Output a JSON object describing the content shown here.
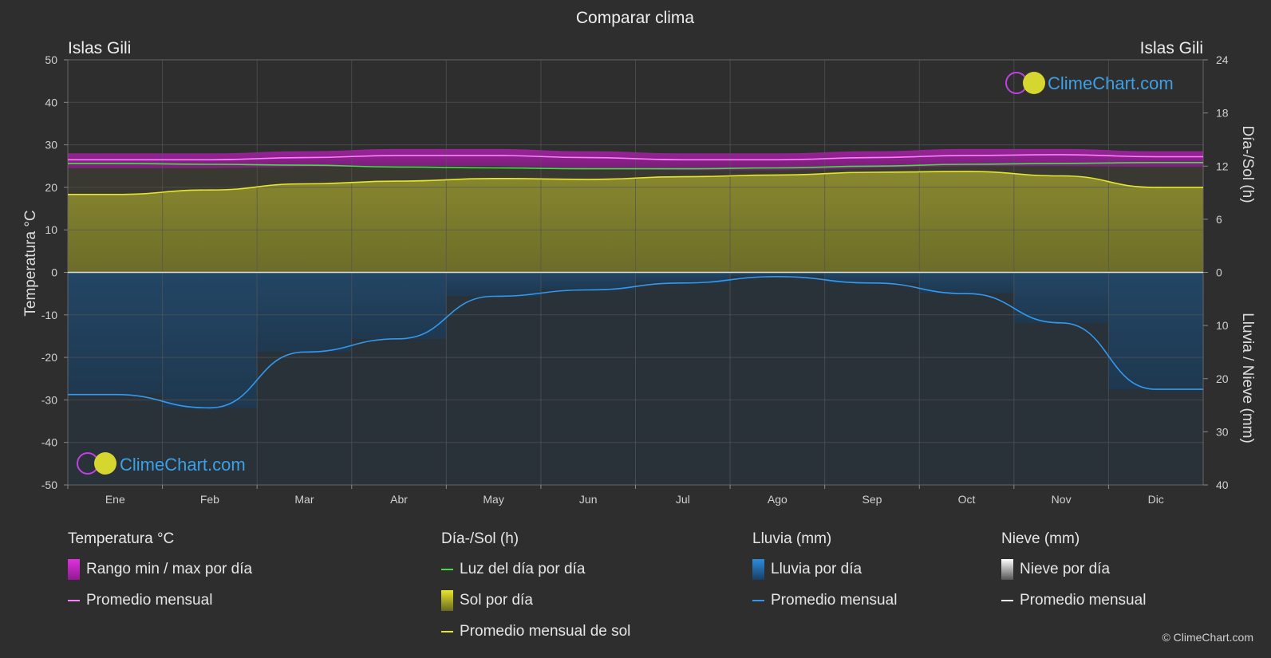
{
  "title": "Comparar clima",
  "location_left": "Islas Gili",
  "location_right": "Islas Gili",
  "watermark": "ClimeChart.com",
  "copyright": "© ClimeChart.com",
  "colors": {
    "background": "#2e2e2e",
    "grid": "#555555",
    "temp_range": "#d020d0",
    "temp_avg": "#ff80ff",
    "daylight": "#44dd44",
    "sun_fill": "#9a9a2a",
    "sun_avg": "#e6e62e",
    "rain_fill": "#1e5a8c",
    "rain_avg": "#3399ee",
    "snow_avg": "#ffffff",
    "watermark_text": "#3ca0e6"
  },
  "chart_data": {
    "type": "area",
    "categories": [
      "Ene",
      "Feb",
      "Mar",
      "Abr",
      "May",
      "Jun",
      "Jul",
      "Ago",
      "Sep",
      "Oct",
      "Nov",
      "Dic"
    ],
    "axes": {
      "left": {
        "label": "Temperatura °C",
        "range": [
          -50,
          50
        ],
        "ticks": [
          50,
          40,
          30,
          20,
          10,
          0,
          -10,
          -20,
          -30,
          -40,
          -50
        ]
      },
      "right_top": {
        "label": "Día-/Sol (h)",
        "range": [
          0,
          24
        ],
        "ticks": [
          24,
          18,
          12,
          6,
          0
        ]
      },
      "right_bottom": {
        "label": "Lluvia / Nieve (mm)",
        "range": [
          0,
          40
        ],
        "ticks": [
          10,
          20,
          30,
          40
        ]
      }
    },
    "grid": true,
    "series": [
      {
        "name": "Rango min / max por día",
        "kind": "band",
        "axis": "left",
        "low": [
          24.5,
          24.5,
          24.8,
          25.0,
          25.0,
          24.5,
          24.0,
          24.0,
          24.5,
          25.0,
          25.0,
          24.8
        ],
        "high": [
          28.0,
          28.0,
          28.5,
          29.0,
          29.0,
          28.5,
          28.0,
          28.0,
          28.5,
          29.0,
          29.0,
          28.5
        ]
      },
      {
        "name": "Promedio mensual",
        "kind": "line",
        "axis": "left",
        "values": [
          26.5,
          26.5,
          27.0,
          27.5,
          27.5,
          27.0,
          26.5,
          26.5,
          27.0,
          27.5,
          27.7,
          27.2
        ]
      },
      {
        "name": "Luz del día por día",
        "kind": "line",
        "axis": "right_top",
        "values": [
          12.3,
          12.2,
          12.1,
          11.9,
          11.8,
          11.7,
          11.7,
          11.8,
          12.0,
          12.2,
          12.3,
          12.4
        ]
      },
      {
        "name": "Sol por día",
        "kind": "area",
        "axis": "right_top",
        "values": [
          8.8,
          9.3,
          10.0,
          10.3,
          10.6,
          10.5,
          10.8,
          11.0,
          11.3,
          11.4,
          10.9,
          9.6
        ]
      },
      {
        "name": "Promedio mensual de sol",
        "kind": "line",
        "axis": "right_top",
        "values": [
          8.8,
          9.3,
          10.0,
          10.3,
          10.6,
          10.5,
          10.8,
          11.0,
          11.3,
          11.4,
          10.9,
          9.6
        ]
      },
      {
        "name": "Lluvia por día",
        "kind": "bars",
        "axis": "right_bottom",
        "values": [
          23.0,
          25.5,
          15.0,
          12.5,
          4.5,
          3.3,
          2.0,
          0.8,
          2.0,
          4.0,
          9.5,
          22.0
        ]
      },
      {
        "name": "Promedio mensual",
        "kind": "line",
        "axis": "right_bottom",
        "values": [
          23.0,
          25.5,
          15.0,
          12.5,
          4.5,
          3.3,
          2.0,
          0.8,
          2.0,
          4.0,
          9.5,
          22.0
        ]
      }
    ]
  },
  "legend": {
    "temp": {
      "title": "Temperatura °C",
      "range": "Rango min / max por día",
      "avg": "Promedio mensual"
    },
    "sun": {
      "title": "Día-/Sol (h)",
      "daylight": "Luz del día por día",
      "sun": "Sol por día",
      "avg": "Promedio mensual de sol"
    },
    "rain": {
      "title": "Lluvia (mm)",
      "rain": "Lluvia por día",
      "avg": "Promedio mensual"
    },
    "snow": {
      "title": "Nieve (mm)",
      "snow": "Nieve por día",
      "avg": "Promedio mensual"
    }
  }
}
